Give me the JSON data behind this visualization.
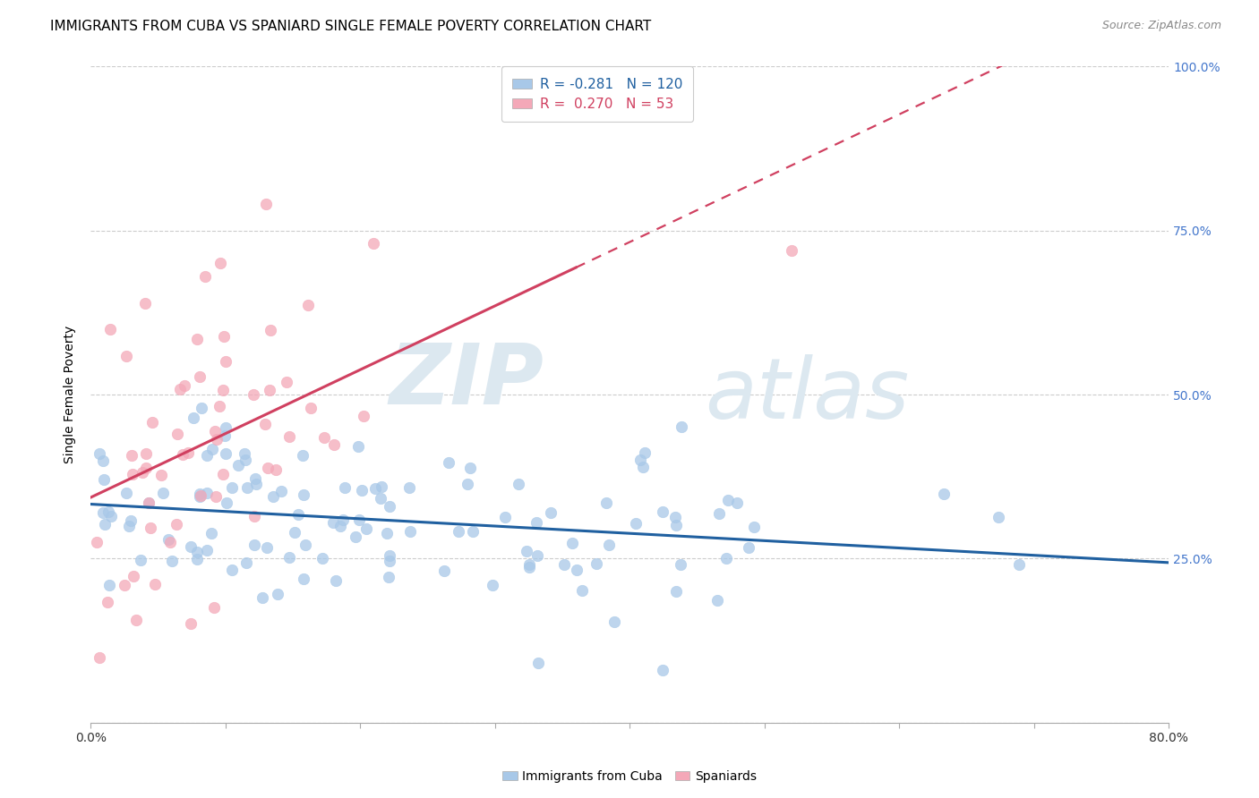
{
  "title": "IMMIGRANTS FROM CUBA VS SPANIARD SINGLE FEMALE POVERTY CORRELATION CHART",
  "source": "Source: ZipAtlas.com",
  "ylabel": "Single Female Poverty",
  "xlim": [
    0,
    0.8
  ],
  "ylim": [
    0,
    1.0
  ],
  "cuba_R": -0.281,
  "cuba_N": 120,
  "spain_R": 0.27,
  "spain_N": 53,
  "cuba_color": "#a8c8e8",
  "spain_color": "#f4a8b8",
  "cuba_line_color": "#2060a0",
  "spain_line_color": "#d04060",
  "background_color": "#ffffff",
  "grid_color": "#cccccc",
  "watermark_zip": "ZIP",
  "watermark_atlas": "atlas",
  "watermark_color": "#dce8f0",
  "title_fontsize": 11,
  "axis_label_fontsize": 10,
  "tick_fontsize": 10,
  "legend_fontsize": 11,
  "right_tick_color": "#4477cc",
  "source_color": "#888888"
}
